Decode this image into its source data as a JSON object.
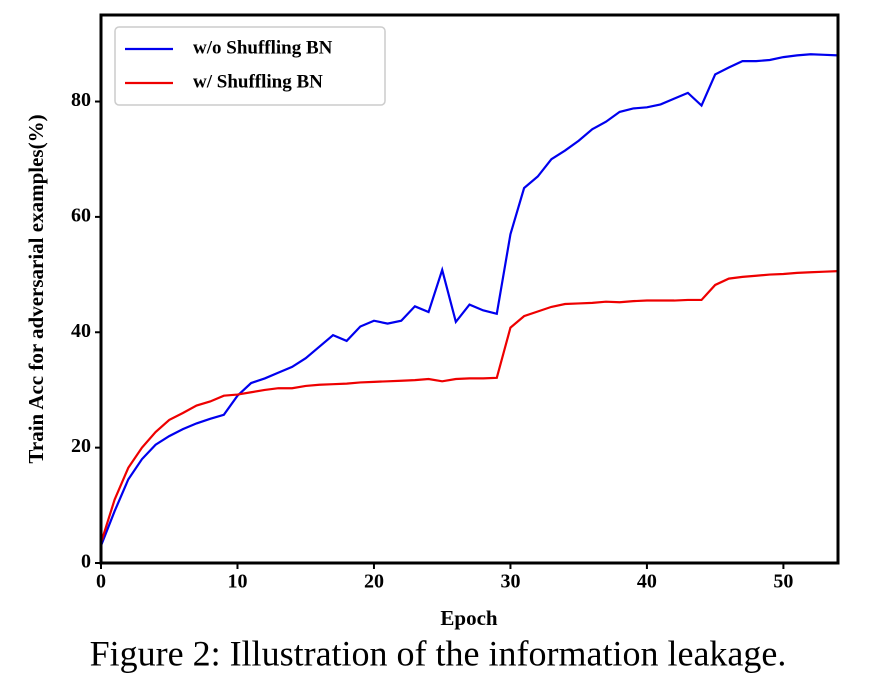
{
  "chart_data": {
    "type": "line",
    "caption": "Figure 2: Illustration of the information leakage.",
    "x_label": "Epoch",
    "y_label": "Train Acc for adversarial examples(%)",
    "x": [
      0,
      1,
      2,
      3,
      4,
      5,
      6,
      7,
      8,
      9,
      10,
      11,
      12,
      13,
      14,
      15,
      16,
      17,
      18,
      19,
      20,
      21,
      22,
      23,
      24,
      25,
      26,
      27,
      28,
      29,
      30,
      31,
      32,
      33,
      34,
      35,
      36,
      37,
      38,
      39,
      40,
      41,
      42,
      43,
      44,
      45,
      46,
      47,
      48,
      49,
      50,
      51,
      52,
      53,
      54
    ],
    "series": [
      {
        "name": "w/o Shuffling BN",
        "color": "#0000ee",
        "values": [
          3,
          9,
          14.5,
          18,
          20.5,
          22,
          23.2,
          24.2,
          25,
          25.7,
          29,
          31.2,
          32,
          33,
          34,
          35.5,
          37.5,
          39.5,
          38.5,
          41,
          42,
          41.5,
          42,
          44.5,
          43.5,
          50.8,
          41.8,
          44.8,
          43.8,
          43.2,
          57,
          65,
          67,
          70,
          71.5,
          73.2,
          75.2,
          76.5,
          78.2,
          78.8,
          79,
          79.5,
          80.5,
          81.5,
          79.3,
          84.7,
          85.9,
          87,
          87,
          87.2,
          87.7,
          88,
          88.2,
          88.1,
          88
        ]
      },
      {
        "name": "w/ Shuffling BN",
        "color": "#ee0000",
        "values": [
          3.5,
          11,
          16.5,
          20,
          22.7,
          24.8,
          26,
          27.3,
          28,
          29,
          29.2,
          29.6,
          30,
          30.3,
          30.3,
          30.7,
          30.9,
          31,
          31.1,
          31.3,
          31.4,
          31.5,
          31.6,
          31.7,
          31.9,
          31.5,
          31.9,
          32,
          32,
          32.1,
          40.8,
          42.8,
          43.6,
          44.4,
          44.9,
          45,
          45.1,
          45.3,
          45.2,
          45.4,
          45.5,
          45.5,
          45.5,
          45.6,
          45.6,
          48.2,
          49.3,
          49.6,
          49.8,
          50,
          50.1,
          50.3,
          50.4,
          50.5,
          50.6
        ]
      }
    ],
    "xlim": [
      0,
      54
    ],
    "xticks": [
      0,
      10,
      20,
      30,
      40,
      50
    ],
    "ylim": [
      0,
      95
    ],
    "yticks": [
      0,
      20,
      40,
      60,
      80
    ],
    "legend": "upper left"
  }
}
